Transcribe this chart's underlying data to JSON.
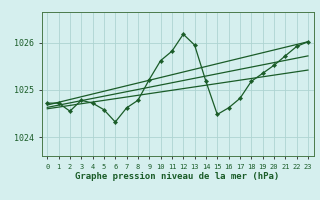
{
  "title": "Graphe pression niveau de la mer (hPa)",
  "bg_color": "#d5efee",
  "grid_color": "#aed4d2",
  "line_color": "#1a5c28",
  "x_labels": [
    "0",
    "1",
    "2",
    "3",
    "4",
    "5",
    "6",
    "7",
    "8",
    "9",
    "10",
    "11",
    "12",
    "13",
    "14",
    "15",
    "16",
    "17",
    "18",
    "19",
    "20",
    "21",
    "22",
    "23"
  ],
  "y_ticks": [
    1024,
    1025,
    1026
  ],
  "ylim": [
    1023.6,
    1026.65
  ],
  "xlim": [
    -0.5,
    23.5
  ],
  "main_data": [
    1024.72,
    1024.72,
    1024.55,
    1024.78,
    1024.72,
    1024.58,
    1024.32,
    1024.62,
    1024.78,
    1025.22,
    1025.62,
    1025.82,
    1026.18,
    1025.95,
    1025.18,
    1024.48,
    1024.62,
    1024.82,
    1025.18,
    1025.35,
    1025.52,
    1025.72,
    1025.92,
    1026.02
  ],
  "trend1_x": [
    0,
    23
  ],
  "trend1_y": [
    1024.68,
    1026.02
  ],
  "trend2_x": [
    0,
    23
  ],
  "trend2_y": [
    1024.63,
    1025.72
  ],
  "trend3_x": [
    0,
    23
  ],
  "trend3_y": [
    1024.6,
    1025.42
  ],
  "title_fontsize": 6.5,
  "xlabel_tick_fontsize": 5.0,
  "ylabel_tick_fontsize": 6.0
}
